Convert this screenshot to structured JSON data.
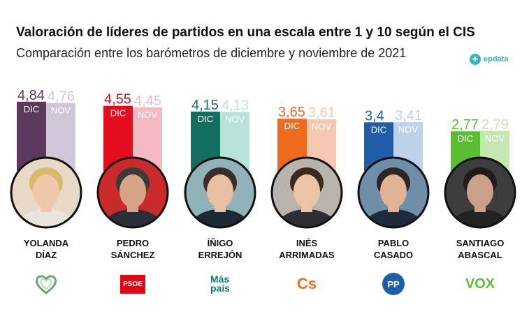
{
  "header": {
    "title": "Valoración de líderes de partidos en una escala entre 1 y 10 según el CIS",
    "subtitle": "Comparación entre los barómetros de diciembre y noviembre de 2021",
    "brand": "epdata"
  },
  "chart_data": {
    "type": "bar",
    "title": "Valoración de líderes de partidos en una escala entre 1 y 10 según el CIS",
    "subtitle": "Comparación entre los barómetros de diciembre y noviembre de 2021",
    "categories": [
      "YOLANDA DÍAZ",
      "PEDRO SÁNCHEZ",
      "ÍÑIGO ERREJÓN",
      "INÉS ARRIMADAS",
      "PABLO CASADO",
      "SANTIAGO ABASCAL"
    ],
    "series": [
      {
        "name": "DIC",
        "values": [
          4.84,
          4.55,
          4.15,
          3.65,
          3.4,
          2.77
        ]
      },
      {
        "name": "NOV",
        "values": [
          4.76,
          4.45,
          4.13,
          3.61,
          3.41,
          2.79
        ]
      }
    ],
    "value_labels": {
      "DIC": [
        "4,84",
        "4,55",
        "4,15",
        "3,65",
        "3,4",
        "2,77"
      ],
      "NOV": [
        "4,76",
        "4,45",
        "4,13",
        "3,61",
        "3,41",
        "2,79"
      ]
    },
    "ylim": [
      0,
      10
    ],
    "grid": false,
    "legend": "none"
  },
  "leaders": [
    {
      "first": "YOLANDA",
      "last": "DÍAZ",
      "party": "Sumar",
      "logo_text": "",
      "logo_icon": "heart-logo-icon",
      "colors": {
        "dic": "#5b3a5e",
        "nov": "#cfc6d8",
        "label": "#5b3a5e",
        "photo_bg": "#e7d9c5",
        "skin": "#efc8ac",
        "hair": "#d9b86c",
        "clothes": "#e9e4df"
      }
    },
    {
      "first": "PEDRO",
      "last": "SÁNCHEZ",
      "party": "PSOE",
      "logo_text": "PSOE",
      "logo_icon": "psoe-logo-icon",
      "colors": {
        "dic": "#e30d1f",
        "nov": "#f3b8c0",
        "label": "#e30d1f",
        "photo_bg": "#c92a2a",
        "skin": "#d6a384",
        "hair": "#3d3a37",
        "clothes": "#2c2f3a"
      }
    },
    {
      "first": "ÍÑIGO",
      "last": "ERREJÓN",
      "party": "Más País",
      "logo_text": "Más\npaís",
      "logo_icon": "mas-pais-logo-icon",
      "colors": {
        "dic": "#137060",
        "nov": "#b9e2d8",
        "label": "#137060",
        "photo_bg": "#8fb3b8",
        "skin": "#e8bfa0",
        "hair": "#3a2e28",
        "clothes": "#1e2a33"
      }
    },
    {
      "first": "INÉS",
      "last": "ARRIMADAS",
      "party": "Cs",
      "logo_text": "Cs",
      "logo_icon": "cs-logo-icon",
      "colors": {
        "dic": "#ee6a1f",
        "nov": "#f7c8b1",
        "label": "#ee6a1f",
        "photo_bg": "#b9b3ad",
        "skin": "#ecc3a4",
        "hair": "#3b2a20",
        "clothes": "#2d2d33"
      }
    },
    {
      "first": "PABLO",
      "last": "CASADO",
      "party": "PP",
      "logo_text": "PP",
      "logo_icon": "pp-logo-icon",
      "colors": {
        "dic": "#1e5fa8",
        "nov": "#bcd2ea",
        "label": "#1e5fa8",
        "photo_bg": "#6f8ea8",
        "skin": "#e2b393",
        "hair": "#2e2622",
        "clothes": "#1f2a3d"
      }
    },
    {
      "first": "SANTIAGO",
      "last": "ABASCAL",
      "party": "VOX",
      "logo_text": "VOX",
      "logo_icon": "vox-logo-icon",
      "colors": {
        "dic": "#5bbd31",
        "nov": "#c5e8b3",
        "label": "#5bbd31",
        "photo_bg": "#3d3d3d",
        "skin": "#caa08a",
        "hair": "#1f1d1c",
        "clothes": "#232323"
      }
    }
  ]
}
